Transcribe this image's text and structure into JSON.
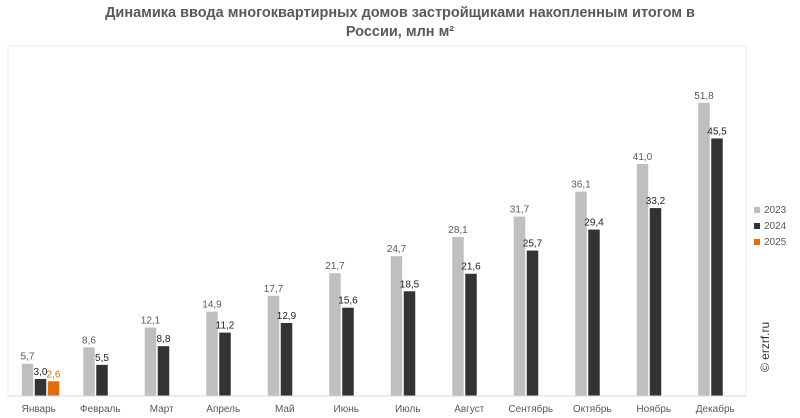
{
  "title": {
    "line1": "Динамика ввода многоквартирных домов застройщиками накопленным итогом в",
    "line2": "России, млн м²"
  },
  "watermark": "© erzrf.ru",
  "colors": {
    "2023": "#bfbfbf",
    "2024": "#333333",
    "2025": "#e36c0a"
  },
  "chart_data": {
    "type": "bar",
    "title": "Динамика ввода многоквартирных домов застройщиками накопленным итогом в России, млн м²",
    "categories": [
      "Январь",
      "Февраль",
      "Март",
      "Апрель",
      "Май",
      "Июнь",
      "Июль",
      "Август",
      "Сентябрь",
      "Октябрь",
      "Ноябрь",
      "Декабрь"
    ],
    "series": [
      {
        "name": "2023",
        "values": [
          5.7,
          8.6,
          12.1,
          14.9,
          17.7,
          21.7,
          24.7,
          28.1,
          31.7,
          36.1,
          41.0,
          51.8
        ],
        "labels": [
          "5,7",
          "8,6",
          "12,1",
          "14,9",
          "17,7",
          "21,7",
          "24,7",
          "28,1",
          "31,7",
          "36,1",
          "41,0",
          "51,8"
        ]
      },
      {
        "name": "2024",
        "values": [
          3.0,
          5.5,
          8.8,
          11.2,
          12.9,
          15.6,
          18.5,
          21.6,
          25.7,
          29.4,
          33.2,
          45.5
        ],
        "labels": [
          "3,0",
          "5,5",
          "8,8",
          "11,2",
          "12,9",
          "15,6",
          "18,5",
          "21,6",
          "25,7",
          "29,4",
          "33,2",
          "45,5"
        ]
      },
      {
        "name": "2025",
        "values": [
          2.6,
          null,
          null,
          null,
          null,
          null,
          null,
          null,
          null,
          null,
          null,
          null
        ],
        "labels": [
          "2,6",
          "",
          "",
          "",
          "",
          "",
          "",
          "",
          "",
          "",
          "",
          ""
        ]
      }
    ],
    "ylim": [
      0,
      53
    ],
    "xlabel": "",
    "ylabel": "",
    "grid": false,
    "legend": "right"
  }
}
